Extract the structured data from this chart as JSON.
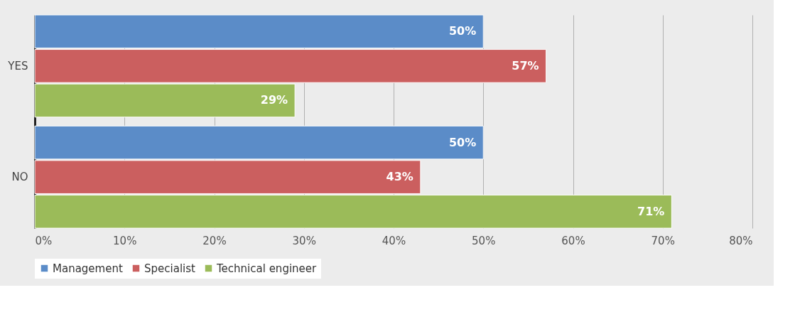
{
  "chart_data": {
    "type": "bar",
    "orientation": "horizontal",
    "categories": [
      "YES",
      "NO"
    ],
    "series": [
      {
        "name": "Management",
        "color": "#5b8cc8",
        "values": [
          50,
          50
        ],
        "value_labels": [
          "50%",
          "50%"
        ]
      },
      {
        "name": "Specialist",
        "color": "#cb5f5f",
        "values": [
          57,
          43
        ],
        "value_labels": [
          "57%",
          "43%"
        ]
      },
      {
        "name": "Technical engineer",
        "color": "#9bbb59",
        "values": [
          29,
          71
        ],
        "value_labels": [
          "29%",
          "71%"
        ]
      }
    ],
    "xlim": [
      0,
      80
    ],
    "xticks": [
      {
        "value": 0,
        "label": "0%"
      },
      {
        "value": 10,
        "label": "10%"
      },
      {
        "value": 20,
        "label": "20%"
      },
      {
        "value": 30,
        "label": "30%"
      },
      {
        "value": 40,
        "label": "40%"
      },
      {
        "value": 50,
        "label": "50%"
      },
      {
        "value": 60,
        "label": "60%"
      },
      {
        "value": 70,
        "label": "70%"
      },
      {
        "value": 80,
        "label": "80%"
      }
    ],
    "grid": "x",
    "legend": "bottom"
  }
}
